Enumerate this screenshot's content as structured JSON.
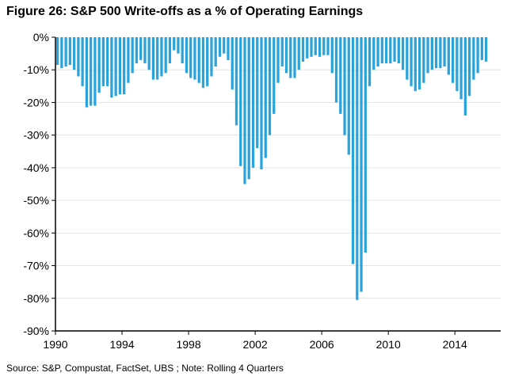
{
  "figure": {
    "title": "Figure 26: S&P 500 Write-offs as a % of Operating Earnings",
    "source": "Source:  S&P, Compustat, FactSet, UBS ; Note: Rolling 4 Quarters"
  },
  "chart_data": {
    "type": "bar",
    "title": "Figure 26: S&P 500 Write-offs as a % of Operating Earnings",
    "xlabel": "",
    "ylabel": "",
    "ylim": [
      -90,
      0
    ],
    "xlim": [
      1990,
      2016.75
    ],
    "bar_color": "#29a3dc",
    "grid": "horizontal",
    "y_ticks": [
      0,
      -10,
      -20,
      -30,
      -40,
      -50,
      -60,
      -70,
      -80,
      -90
    ],
    "y_tick_labels": [
      "0%",
      "-10%",
      "-20%",
      "-30%",
      "-40%",
      "-50%",
      "-60%",
      "-70%",
      "-80%",
      "-90%"
    ],
    "x_ticks": [
      1990,
      1994,
      1998,
      2002,
      2006,
      2010,
      2014
    ],
    "x_tick_labels": [
      "1990",
      "1994",
      "1998",
      "2002",
      "2006",
      "2010",
      "2014"
    ],
    "x_start": 1990,
    "x_step": 0.25,
    "values": [
      -8.5,
      -9.5,
      -9,
      -8.5,
      -10,
      -12,
      -15,
      -21.5,
      -21,
      -21,
      -17,
      -15,
      -15,
      -18.5,
      -18,
      -17.5,
      -17.5,
      -14,
      -11,
      -8,
      -7,
      -8,
      -10,
      -13,
      -13,
      -12,
      -11,
      -8,
      -4,
      -5,
      -8,
      -11,
      -12.5,
      -13,
      -14,
      -15.5,
      -15,
      -12,
      -9,
      -6,
      -5,
      -7,
      -16,
      -27,
      -39.5,
      -45,
      -43.5,
      -40,
      -34,
      -40.5,
      -37,
      -30,
      -23.5,
      -14,
      -9,
      -11,
      -12.5,
      -12.5,
      -10,
      -7.5,
      -6.5,
      -6,
      -5.5,
      -6,
      -5.5,
      -5.5,
      -11,
      -20,
      -23.5,
      -30,
      -36,
      -69.5,
      -80.5,
      -78,
      -66,
      -15,
      -10,
      -9,
      -8,
      -8,
      -8,
      -7.5,
      -8,
      -10,
      -13,
      -15,
      -16.5,
      -16,
      -14,
      -11,
      -10,
      -9.5,
      -9.5,
      -9,
      -11.5,
      -14,
      -16.5,
      -19,
      -24,
      -18,
      -13,
      -11,
      -7,
      -7.5
    ]
  }
}
